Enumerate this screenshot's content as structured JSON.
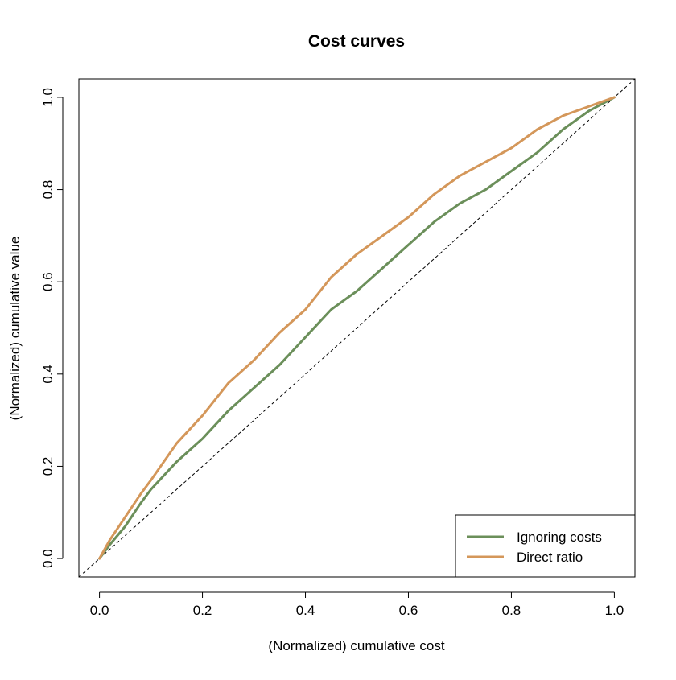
{
  "chart_data": {
    "type": "line",
    "title": "Cost curves",
    "xlabel": "(Normalized) cumulative cost",
    "ylabel": "(Normalized) cumulative value",
    "xlim": [
      -0.04,
      1.04
    ],
    "ylim": [
      -0.04,
      1.04
    ],
    "x_ticks": [
      "0.0",
      "0.2",
      "0.4",
      "0.6",
      "0.8",
      "1.0"
    ],
    "y_ticks": [
      "0.0",
      "0.2",
      "0.4",
      "0.6",
      "0.8",
      "1.0"
    ],
    "grid": false,
    "legend_position": "bottom-right",
    "reference_line": {
      "style": "dashed",
      "color": "#000000",
      "from": [
        0,
        0
      ],
      "to": [
        1,
        1
      ]
    },
    "series": [
      {
        "name": "Ignoring costs",
        "color": "#6b8f5a",
        "x": [
          0,
          0.02,
          0.05,
          0.08,
          0.1,
          0.15,
          0.2,
          0.25,
          0.3,
          0.35,
          0.4,
          0.45,
          0.5,
          0.55,
          0.6,
          0.65,
          0.7,
          0.75,
          0.8,
          0.85,
          0.9,
          0.95,
          1.0
        ],
        "y": [
          0,
          0.03,
          0.07,
          0.12,
          0.15,
          0.21,
          0.26,
          0.32,
          0.37,
          0.42,
          0.48,
          0.54,
          0.58,
          0.63,
          0.68,
          0.73,
          0.77,
          0.8,
          0.84,
          0.88,
          0.93,
          0.97,
          1.0
        ]
      },
      {
        "name": "Direct ratio",
        "color": "#d4975a",
        "x": [
          0,
          0.02,
          0.05,
          0.08,
          0.1,
          0.15,
          0.2,
          0.25,
          0.3,
          0.35,
          0.4,
          0.45,
          0.5,
          0.55,
          0.6,
          0.65,
          0.7,
          0.75,
          0.8,
          0.85,
          0.9,
          0.95,
          1.0
        ],
        "y": [
          0,
          0.04,
          0.09,
          0.14,
          0.17,
          0.25,
          0.31,
          0.38,
          0.43,
          0.49,
          0.54,
          0.61,
          0.66,
          0.7,
          0.74,
          0.79,
          0.83,
          0.86,
          0.89,
          0.93,
          0.96,
          0.98,
          1.0
        ]
      }
    ]
  }
}
